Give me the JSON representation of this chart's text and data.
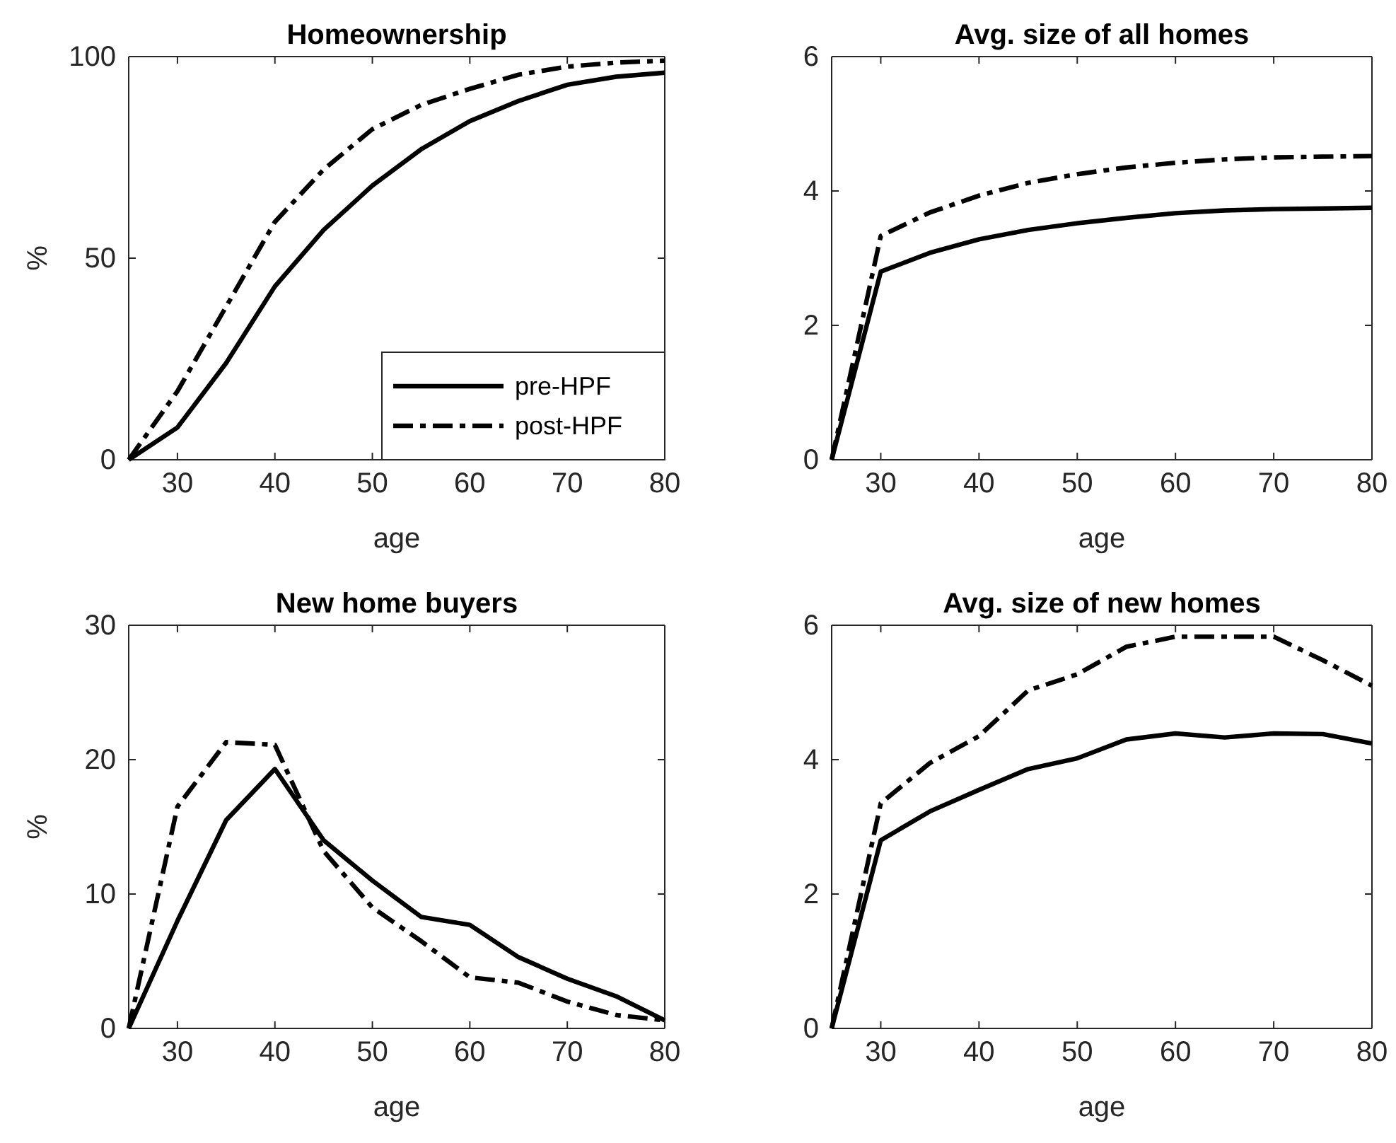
{
  "chart_data": [
    {
      "type": "line",
      "title": "Homeownership",
      "xlabel": "age",
      "ylabel": "%",
      "x": [
        25,
        30,
        35,
        40,
        45,
        50,
        55,
        60,
        65,
        70,
        75,
        80
      ],
      "xlim": [
        25,
        80
      ],
      "xticks": [
        30,
        40,
        50,
        60,
        70,
        80
      ],
      "ylim": [
        0,
        100
      ],
      "yticks": [
        0,
        50,
        100
      ],
      "legend": "bottom right",
      "grid": false,
      "series": [
        {
          "name": "pre-HPF",
          "color": "#000000",
          "line_style": "solid",
          "values": [
            0,
            8,
            24,
            43,
            57,
            68,
            77,
            84,
            89,
            93,
            95,
            96
          ]
        },
        {
          "name": "post-HPF",
          "color": "#000000",
          "line_style": "dashed",
          "values": [
            0,
            17,
            38,
            59,
            72,
            82,
            88,
            92,
            95.5,
            97.5,
            98.5,
            99
          ]
        }
      ]
    },
    {
      "type": "line",
      "title": "Avg. size of all homes",
      "xlabel": "age",
      "x": [
        25,
        30,
        35,
        40,
        45,
        50,
        55,
        60,
        65,
        70,
        75,
        80
      ],
      "xlim": [
        25,
        80
      ],
      "xticks": [
        30,
        40,
        50,
        60,
        70,
        80
      ],
      "ylim": [
        0,
        6
      ],
      "yticks": [
        0,
        2,
        4,
        6
      ],
      "grid": false,
      "series": [
        {
          "color": "#000000",
          "line_style": "solid",
          "values": [
            0,
            2.8,
            3.08,
            3.28,
            3.42,
            3.52,
            3.6,
            3.67,
            3.71,
            3.73,
            3.74,
            3.75
          ]
        },
        {
          "color": "#000000",
          "line_style": "dashed",
          "values": [
            0,
            3.33,
            3.68,
            3.93,
            4.12,
            4.25,
            4.35,
            4.42,
            4.47,
            4.5,
            4.51,
            4.52
          ]
        }
      ]
    },
    {
      "type": "line",
      "title": "New home buyers",
      "xlabel": "age",
      "ylabel": "%",
      "x": [
        25,
        30,
        35,
        40,
        45,
        50,
        55,
        60,
        65,
        70,
        75,
        80
      ],
      "xlim": [
        25,
        80
      ],
      "xticks": [
        30,
        40,
        50,
        60,
        70,
        80
      ],
      "ylim": [
        0,
        30
      ],
      "yticks": [
        0,
        10,
        20,
        30
      ],
      "grid": false,
      "series": [
        {
          "color": "#000000",
          "line_style": "solid",
          "values": [
            0,
            8,
            15.5,
            19.3,
            14,
            11,
            8.3,
            7.7,
            5.3,
            3.7,
            2.4,
            0.6
          ]
        },
        {
          "color": "#000000",
          "line_style": "dashed",
          "values": [
            0,
            16.5,
            21.3,
            21.1,
            13.2,
            9,
            6.5,
            3.8,
            3.4,
            2,
            1,
            0.6
          ]
        }
      ]
    },
    {
      "type": "line",
      "title": "Avg. size of new homes",
      "xlabel": "age",
      "x": [
        25,
        30,
        35,
        40,
        45,
        50,
        55,
        60,
        65,
        70,
        75,
        80
      ],
      "xlim": [
        25,
        80
      ],
      "xticks": [
        30,
        40,
        50,
        60,
        70,
        80
      ],
      "ylim": [
        0,
        6
      ],
      "yticks": [
        0,
        2,
        4,
        6
      ],
      "grid": false,
      "series": [
        {
          "color": "#000000",
          "line_style": "solid",
          "values": [
            0,
            2.8,
            3.23,
            3.55,
            3.86,
            4.02,
            4.3,
            4.39,
            4.33,
            4.39,
            4.38,
            4.24
          ]
        },
        {
          "color": "#000000",
          "line_style": "dashed",
          "values": [
            0,
            3.35,
            3.95,
            4.35,
            5.03,
            5.27,
            5.68,
            5.83,
            5.83,
            5.83,
            5.48,
            5.1
          ]
        }
      ]
    }
  ]
}
